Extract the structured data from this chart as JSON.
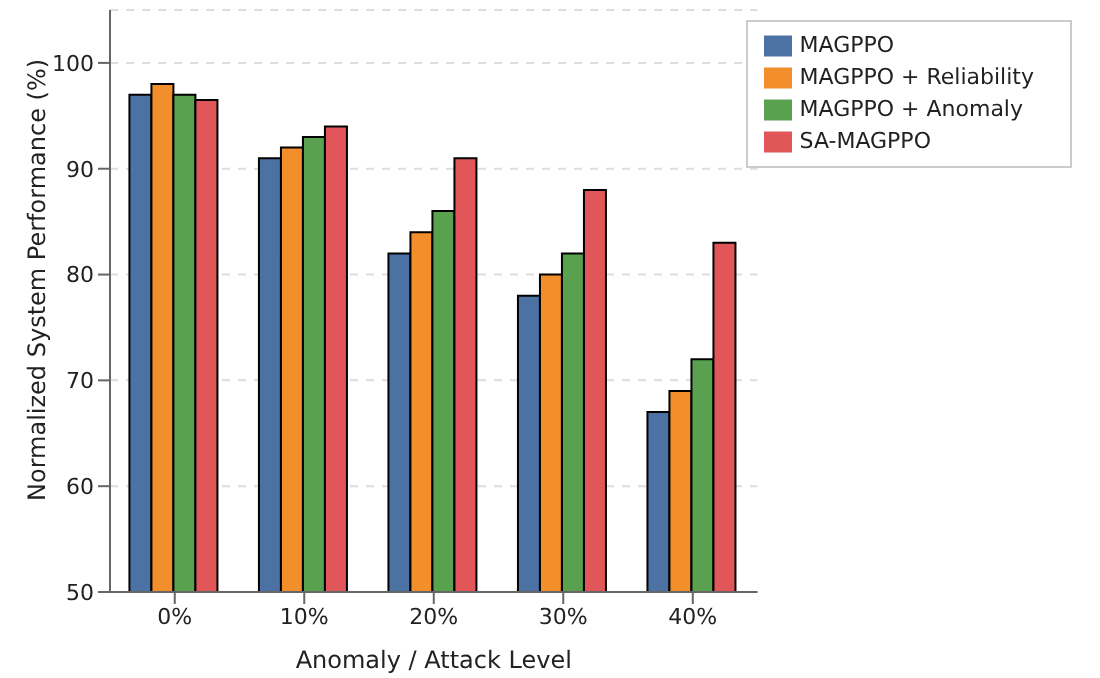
{
  "chart_data": {
    "type": "bar",
    "xlabel": "Anomaly / Attack Level",
    "ylabel": "Normalized System Performance (%)",
    "categories": [
      "0%",
      "10%",
      "20%",
      "30%",
      "40%"
    ],
    "series": [
      {
        "name": "MAGPPO",
        "color": "#4c72a4",
        "values": [
          97,
          91,
          82,
          78,
          67
        ]
      },
      {
        "name": "MAGPPO + Reliability",
        "color": "#f28e2b",
        "values": [
          98,
          92,
          84,
          80,
          69
        ]
      },
      {
        "name": "MAGPPO + Anomaly",
        "color": "#59a14f",
        "values": [
          97,
          93,
          86,
          82,
          72
        ]
      },
      {
        "name": "SA-MAGPPO",
        "color": "#e15759",
        "values": [
          96.5,
          94,
          91,
          88,
          83
        ]
      }
    ],
    "ylim": [
      50,
      105
    ],
    "yticks": [
      50,
      60,
      70,
      80,
      90,
      100
    ],
    "grid": "y",
    "legend": "top right"
  }
}
